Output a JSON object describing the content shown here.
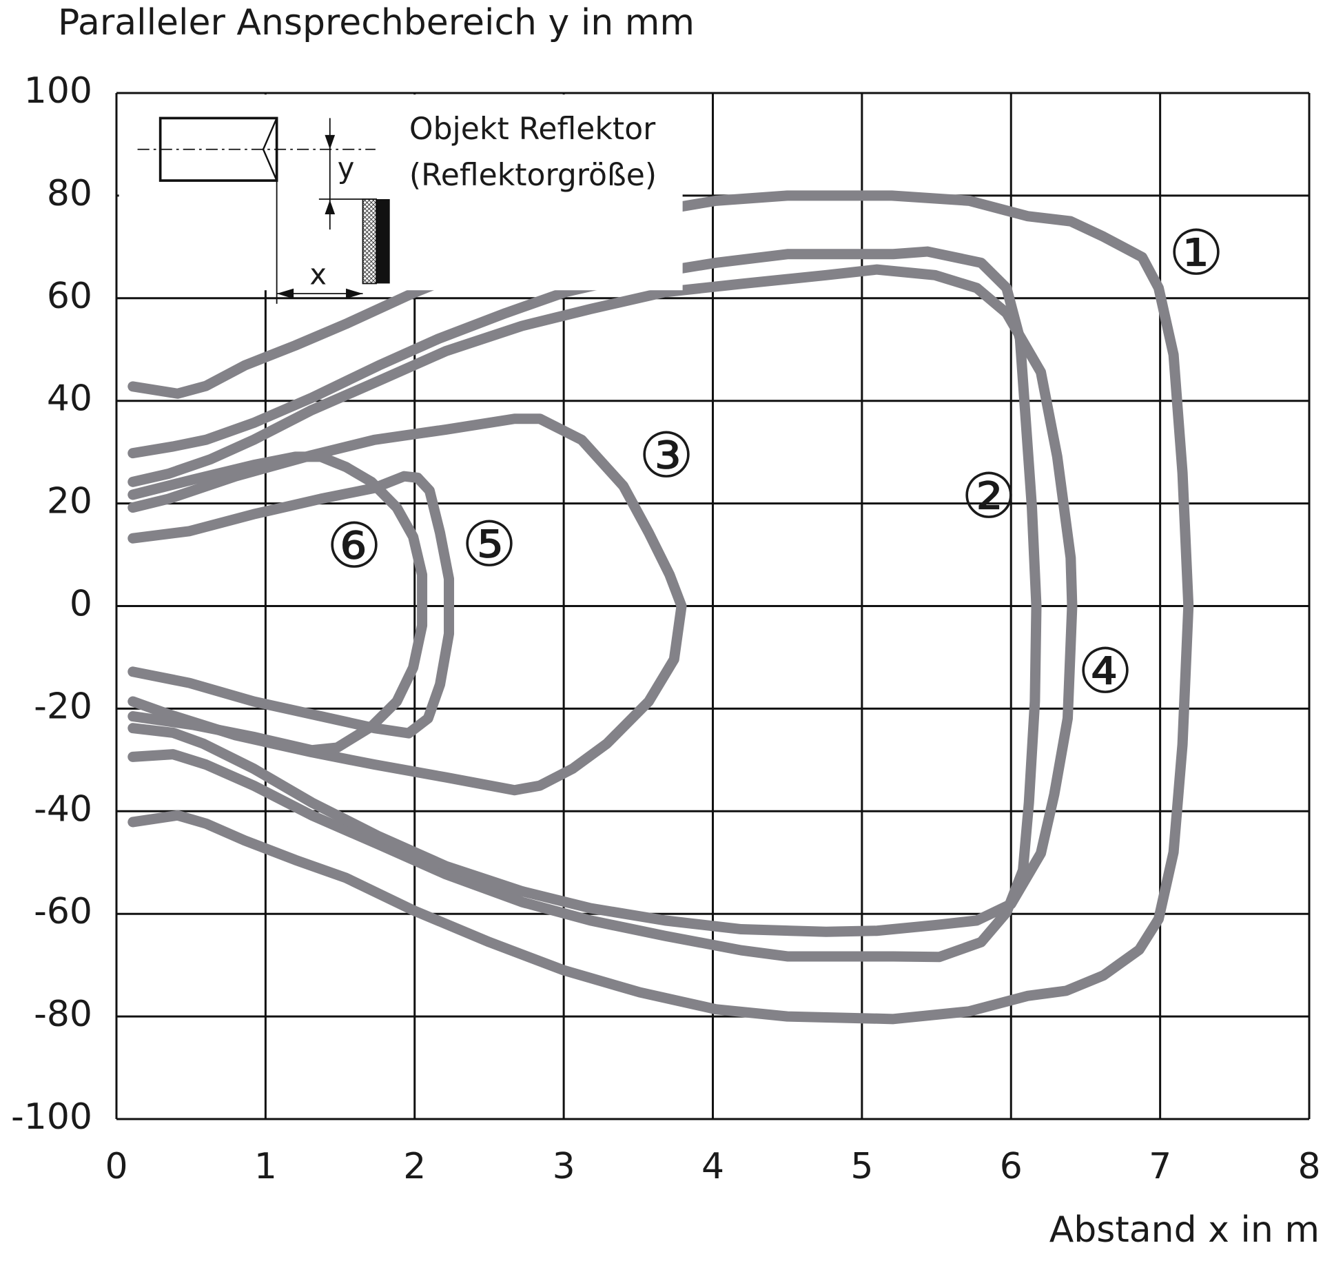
{
  "chart_data": {
    "type": "line",
    "title": "Paralleler Ansprechbereich y in mm",
    "x_label": "Abstand x in m",
    "xlim": [
      0,
      8
    ],
    "ylim": [
      -100,
      100
    ],
    "xticks": [
      0,
      1,
      2,
      3,
      4,
      5,
      6,
      7,
      8
    ],
    "yticks": [
      -100,
      -80,
      -60,
      -40,
      -20,
      0,
      20,
      40,
      60,
      80,
      100
    ],
    "grid": true,
    "inset": {
      "label": "Objekt Reflektor",
      "sublabel": "(Reflektorgröße)",
      "x_symbol": "x",
      "y_symbol": "y"
    },
    "series": [
      {
        "name": "①",
        "color": "#838288",
        "x": [
          0.11,
          0.41,
          0.6,
          0.86,
          1.2,
          1.54,
          1.99,
          2.5,
          3.0,
          3.51,
          4.02,
          4.5,
          5.2,
          5.72,
          6.11,
          6.4,
          6.62,
          6.88,
          6.99,
          7.09,
          7.15,
          7.19,
          7.15,
          7.09,
          6.99,
          6.86,
          6.62,
          6.37,
          6.11,
          5.72,
          5.21,
          4.5,
          4.02,
          3.51,
          3.0,
          2.5,
          1.99,
          1.54,
          1.2,
          0.86,
          0.6,
          0.41,
          0.11
        ],
        "values": [
          42.8,
          41.4,
          42.9,
          46.9,
          50.8,
          55,
          61,
          67,
          72,
          76.5,
          79,
          80,
          80,
          79,
          76,
          75,
          72,
          68,
          62,
          49,
          26,
          0,
          -27,
          -48,
          -61,
          -67,
          -72,
          -75,
          -76,
          -79,
          -80.5,
          -80,
          -78.6,
          -75.3,
          -71,
          -65.5,
          -59.3,
          -53,
          -49.5,
          -45.7,
          -42.4,
          -40.8,
          -42.1
        ]
      },
      {
        "name": "②",
        "color": "#838288",
        "x": [
          0.11,
          0.38,
          0.6,
          0.92,
          1.31,
          1.76,
          2.16,
          2.61,
          3.01,
          3.51,
          4.02,
          4.5,
          5.21,
          5.44,
          5.8,
          5.97,
          6.06,
          6.1,
          6.14,
          6.17,
          6.16,
          6.12,
          6.08,
          5.97,
          5.8,
          5.52,
          5.21,
          4.5,
          4.19,
          3.68,
          3.18,
          2.72,
          2.21,
          1.76,
          1.31,
          0.92,
          0.6,
          0.38,
          0.11
        ],
        "values": [
          29.8,
          31.1,
          32.4,
          35.7,
          40.6,
          46.9,
          52.1,
          57.1,
          61.2,
          64.5,
          66.9,
          68.6,
          68.6,
          69.1,
          66.9,
          62.0,
          52.1,
          35.7,
          19.2,
          0,
          -18.6,
          -38.3,
          -51.5,
          -59.7,
          -65.5,
          -68.4,
          -68.3,
          -68.3,
          -67.1,
          -64.3,
          -61.3,
          -57.7,
          -52.3,
          -46.5,
          -40.8,
          -35.0,
          -30.9,
          -28.9,
          -29.4
        ]
      },
      {
        "name": "③",
        "color": "#838288",
        "x": [
          0.11,
          0.35,
          0.8,
          1.31,
          1.73,
          2.21,
          2.67,
          2.84,
          3.12,
          3.4,
          3.57,
          3.71,
          3.79,
          3.74,
          3.57,
          3.29,
          3.06,
          2.84,
          2.67,
          2.21,
          1.73,
          1.31,
          0.8,
          0.35,
          0.11
        ],
        "values": [
          19.2,
          20.9,
          25.3,
          29.4,
          32.4,
          34.4,
          36.5,
          36.5,
          32.4,
          23.4,
          14.3,
          6.1,
          0,
          -10.4,
          -18.6,
          -26.8,
          -31.7,
          -35.0,
          -35.9,
          -33.4,
          -30.9,
          -28.5,
          -25.2,
          -21.1,
          -18.6
        ]
      },
      {
        "name": "④",
        "color": "#838288",
        "x": [
          0.11,
          0.35,
          0.63,
          0.92,
          1.31,
          1.76,
          2.21,
          2.72,
          3.18,
          3.68,
          4.19,
          4.76,
          5.1,
          5.49,
          5.77,
          5.97,
          6.2,
          6.31,
          6.4,
          6.41,
          6.38,
          6.29,
          6.2,
          6.0,
          5.77,
          5.49,
          5.1,
          4.76,
          4.19,
          3.68,
          3.18,
          2.72,
          2.21,
          1.76,
          1.31,
          0.92,
          0.58,
          0.38,
          0.11
        ],
        "values": [
          24.2,
          25.8,
          28.6,
          32.4,
          38.2,
          43.9,
          49.7,
          54.6,
          57.9,
          61.2,
          62.8,
          64.5,
          65.6,
          64.5,
          62.0,
          57.1,
          45.6,
          29.1,
          9.4,
          0,
          -21.9,
          -36.7,
          -48.2,
          -58.1,
          -61.3,
          -62.2,
          -63.3,
          -63.5,
          -63.0,
          -61.3,
          -58.9,
          -55.6,
          -50.7,
          -44.9,
          -38.3,
          -31.7,
          -26.8,
          -24.7,
          -23.8
        ]
      },
      {
        "name": "⑤",
        "color": "#838288",
        "x": [
          0.11,
          0.49,
          0.92,
          1.37,
          1.73,
          1.93,
          2.02,
          2.1,
          2.17,
          2.23,
          2.23,
          2.17,
          2.09,
          1.96,
          1.73,
          1.31,
          0.92,
          0.49,
          0.11
        ],
        "values": [
          13.2,
          14.6,
          17.9,
          20.9,
          23.0,
          25.3,
          25.0,
          22.5,
          14.3,
          5.3,
          -5.4,
          -15.3,
          -21.9,
          -24.8,
          -23.8,
          -21.1,
          -18.6,
          -15.0,
          -12.8
        ]
      },
      {
        "name": "⑥",
        "color": "#838288",
        "x": [
          0.11,
          0.52,
          0.92,
          1.2,
          1.37,
          1.54,
          1.71,
          1.88,
          1.99,
          2.05,
          2.05,
          1.99,
          1.88,
          1.71,
          1.48,
          1.31,
          0.92,
          0.52,
          0.11
        ],
        "values": [
          21.7,
          24.7,
          27.5,
          29.1,
          29.1,
          27.1,
          24.2,
          19.2,
          13.5,
          6.1,
          -3.8,
          -12.0,
          -18.6,
          -23.5,
          -27.6,
          -28.1,
          -25.5,
          -23.2,
          -21.5
        ]
      }
    ]
  }
}
